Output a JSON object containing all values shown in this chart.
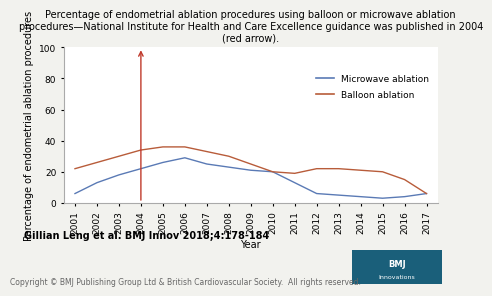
{
  "years": [
    2001,
    2002,
    2003,
    2004,
    2005,
    2006,
    2007,
    2008,
    2009,
    2010,
    2011,
    2012,
    2013,
    2014,
    2015,
    2016,
    2017
  ],
  "microwave": [
    6,
    13,
    18,
    22,
    26,
    29,
    25,
    23,
    21,
    20,
    13,
    6,
    5,
    4,
    3,
    4,
    6
  ],
  "balloon": [
    22,
    26,
    30,
    34,
    36,
    36,
    33,
    30,
    25,
    20,
    19,
    22,
    22,
    21,
    20,
    15,
    6
  ],
  "microwave_color": "#5a7ab5",
  "balloon_color": "#b85c3a",
  "arrow_color": "#c0392b",
  "arrow_year": 2004,
  "ylim": [
    0,
    100
  ],
  "yticks": [
    0,
    20,
    40,
    60,
    80,
    100
  ],
  "title": "Percentage of endometrial ablation procedures using balloon or microwave ablation\nprocedures—National Institute for Health and Care Excellence guidance was published in 2004\n(red arrow).",
  "xlabel": "Year",
  "ylabel": "Percentage of endometrial ablation procedures",
  "legend_microwave": "Microwave ablation",
  "legend_balloon": "Balloon ablation",
  "author_text": "Gillian Leng et al. BMJ Innov 2018;4:178-184",
  "copyright_text": "Copyright © BMJ Publishing Group Ltd & British Cardiovascular Society.  All rights reserved.",
  "title_fontsize": 7.0,
  "axis_fontsize": 7.0,
  "tick_fontsize": 6.5,
  "legend_fontsize": 6.5,
  "author_fontsize": 7.0,
  "copyright_fontsize": 5.5,
  "bg_color": "#f2f2ee",
  "plot_bg_color": "#ffffff",
  "logo_color": "#1a5f7a"
}
